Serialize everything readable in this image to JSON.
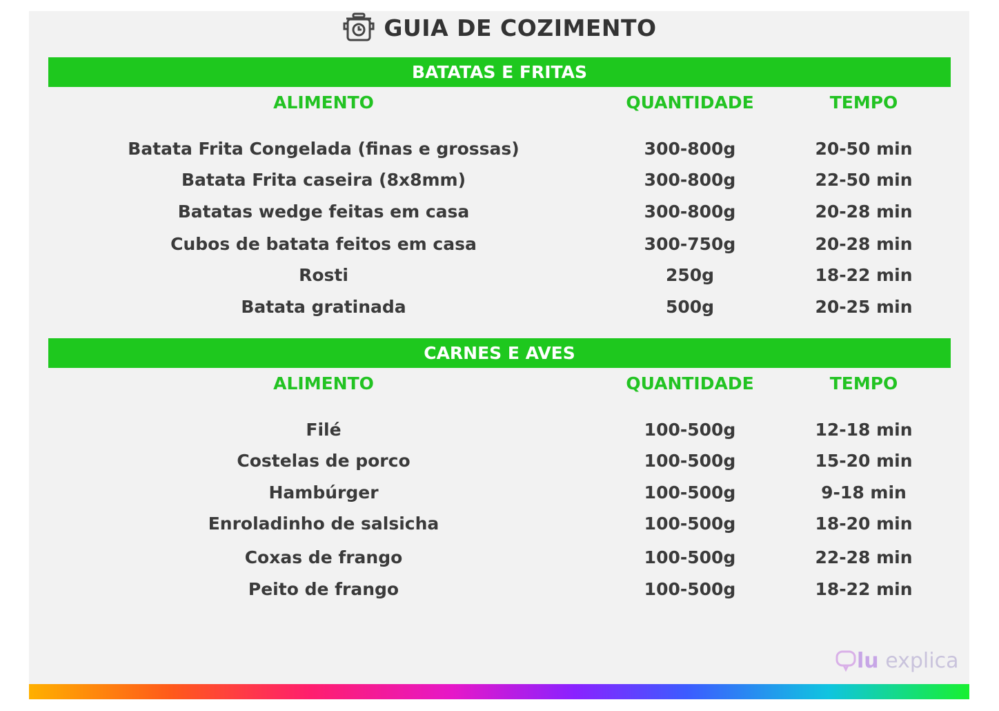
{
  "title": "GUIA DE COZIMENTO",
  "icon": "pressure-cooker-icon",
  "accent_color": "#1ec81e",
  "sections": [
    {
      "name": "BATATAS E FRITAS",
      "headers": [
        "ALIMENTO",
        "QUANTIDADE",
        "TEMPO"
      ],
      "rows": [
        [
          "Batata Frita Congelada (finas e grossas)",
          "300-800g",
          "20-50 min"
        ],
        [
          "Batata Frita caseira (8x8mm)",
          "300-800g",
          "22-50 min"
        ],
        [
          "Batatas wedge feitas em casa",
          "300-800g",
          "20-28 min"
        ],
        [
          "Cubos de batata feitos em casa",
          "300-750g",
          "20-28 min"
        ],
        [
          "Rosti",
          "250g",
          "18-22 min"
        ],
        [
          "Batata gratinada",
          "500g",
          "20-25 min"
        ]
      ]
    },
    {
      "name": "CARNES E AVES",
      "headers": [
        "ALIMENTO",
        "QUANTIDADE",
        "TEMPO"
      ],
      "rows": [
        [
          "Filé",
          "100-500g",
          "12-18 min"
        ],
        [
          "Costelas de porco",
          "100-500g",
          "15-20 min"
        ],
        [
          "Hambúrger",
          "100-500g",
          "9-18 min"
        ],
        [
          "Enroladinho de salsicha",
          "100-500g",
          "18-20 min"
        ],
        [
          "Coxas de frango",
          "100-500g",
          "22-28 min"
        ],
        [
          "Peito de frango",
          "100-500g",
          "18-22 min"
        ]
      ]
    }
  ],
  "logo": {
    "brand": "lu",
    "suffix": "explica"
  }
}
